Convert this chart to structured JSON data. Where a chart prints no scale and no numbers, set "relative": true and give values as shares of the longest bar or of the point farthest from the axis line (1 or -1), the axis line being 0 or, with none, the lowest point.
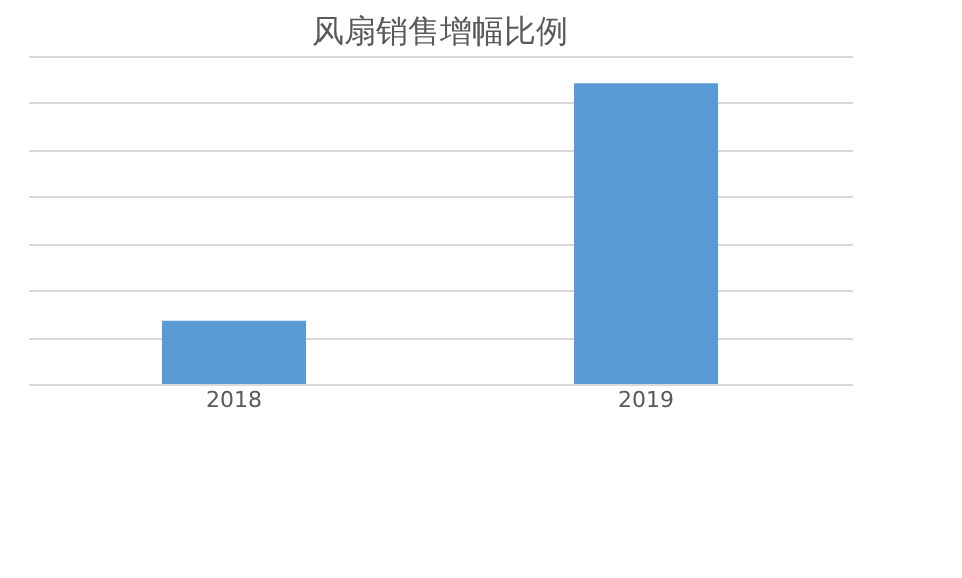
{
  "chart_data": {
    "type": "bar",
    "title": "风扇销售增幅比例",
    "relative": true,
    "grid": "y",
    "categories": [
      "2018",
      "2019"
    ],
    "series": [
      {
        "color": "#5b9bd5",
        "values": [
          0.21,
          1
        ]
      }
    ]
  }
}
